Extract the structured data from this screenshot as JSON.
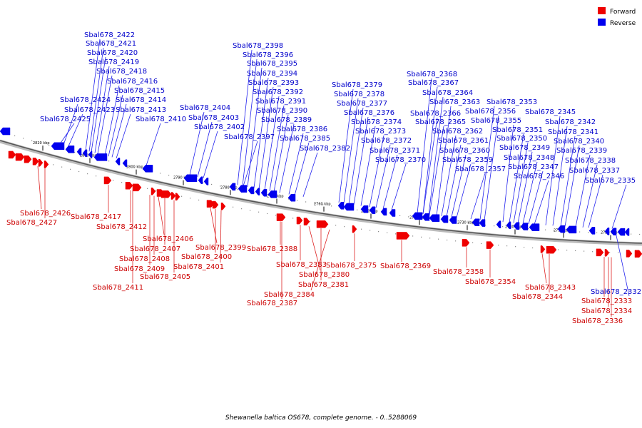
{
  "legend": {
    "forward_label": "Forward",
    "reverse_label": "Reverse",
    "forward_color": "#ee0000",
    "reverse_color": "#0000ee"
  },
  "caption": "Shewanella baltica OS678, complete genome. - 0..5288069",
  "ticks": [
    "2820 kbp",
    "2810 kbp",
    "2800 kbp",
    "2790 kbp",
    "2780 kbp",
    "2770 kbp",
    "2760 kbp",
    "2750 kbp",
    "2740 kbp",
    "2730 kbp",
    "2720 kbp",
    "2710 kbp",
    "2700 kbp"
  ],
  "reverse_genes": [
    "Sbal678_2422",
    "Sbal678_2421",
    "Sbal678_2420",
    "Sbal678_2419",
    "Sbal678_2418",
    "Sbal678_2416",
    "Sbal678_2415",
    "Sbal678_2424",
    "Sbal678_2414",
    "Sbal678_2423",
    "Sbal678_2413",
    "Sbal678_2425",
    "Sbal678_2410",
    "Sbal678_2404",
    "Sbal678_2403",
    "Sbal678_2402",
    "Sbal678_2398",
    "Sbal678_2396",
    "Sbal678_2395",
    "Sbal678_2394",
    "Sbal678_2393",
    "Sbal678_2392",
    "Sbal678_2391",
    "Sbal678_2390",
    "Sbal678_2389",
    "Sbal678_2386",
    "Sbal678_2397",
    "Sbal678_2385",
    "Sbal678_2382",
    "Sbal678_2379",
    "Sbal678_2378",
    "Sbal678_2377",
    "Sbal678_2376",
    "Sbal678_2374",
    "Sbal678_2373",
    "Sbal678_2372",
    "Sbal678_2371",
    "Sbal678_2370",
    "Sbal678_2368",
    "Sbal678_2367",
    "Sbal678_2364",
    "Sbal678_2363",
    "Sbal678_2366",
    "Sbal678_2365",
    "Sbal678_2362",
    "Sbal678_2361",
    "Sbal678_2360",
    "Sbal678_2359",
    "Sbal678_2357",
    "Sbal678_2353",
    "Sbal678_2356",
    "Sbal678_2355",
    "Sbal678_2351",
    "Sbal678_2350",
    "Sbal678_2349",
    "Sbal678_2348",
    "Sbal678_2347",
    "Sbal678_2346",
    "Sbal678_2345",
    "Sbal678_2342",
    "Sbal678_2341",
    "Sbal678_2340",
    "Sbal678_2339",
    "Sbal678_2338",
    "Sbal678_2337",
    "Sbal678_2335",
    "Sbal678_2332"
  ],
  "forward_genes": [
    "Sbal678_2426",
    "Sbal678_2427",
    "Sbal678_2417",
    "Sbal678_2412",
    "Sbal678_2406",
    "Sbal678_2407",
    "Sbal678_2408",
    "Sbal678_2409",
    "Sbal678_2405",
    "Sbal678_2411",
    "Sbal678_2399",
    "Sbal678_2400",
    "Sbal678_2401",
    "Sbal678_2388",
    "Sbal678_2383",
    "Sbal678_2380",
    "Sbal678_2381",
    "Sbal678_2384",
    "Sbal678_2387",
    "Sbal678_2375",
    "Sbal678_2369",
    "Sbal678_2358",
    "Sbal678_2354",
    "Sbal678_2343",
    "Sbal678_2344",
    "Sbal678_2333",
    "Sbal678_2334",
    "Sbal678_2336"
  ]
}
